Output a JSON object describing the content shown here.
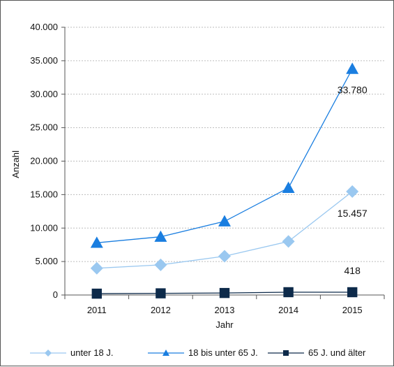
{
  "chart_data": {
    "type": "line",
    "categories": [
      "2011",
      "2012",
      "2013",
      "2014",
      "2015"
    ],
    "xlabel": "Jahr",
    "ylabel": "Anzahl",
    "ylim": [
      0,
      40000
    ],
    "yticks": [
      0,
      5000,
      10000,
      15000,
      20000,
      25000,
      30000,
      35000,
      40000
    ],
    "ytick_labels": [
      "0",
      "5.000",
      "10.000",
      "15.000",
      "20.000",
      "25.000",
      "30.000",
      "35.000",
      "40.000"
    ],
    "grid": true,
    "legend_position": "bottom",
    "series": [
      {
        "name": "unter 18 J.",
        "values": [
          4000,
          4500,
          5800,
          8000,
          15457
        ],
        "color": "#9ac8f0",
        "marker": "diamond",
        "end_label": "15.457"
      },
      {
        "name": "18 bis unter 65 J.",
        "values": [
          7800,
          8700,
          11000,
          16000,
          33780
        ],
        "color": "#1a7ee0",
        "marker": "triangle",
        "end_label": "33.780"
      },
      {
        "name": "65 J. und älter",
        "values": [
          200,
          250,
          300,
          420,
          418
        ],
        "color": "#0d2a4a",
        "marker": "square",
        "end_label": "418"
      }
    ]
  }
}
